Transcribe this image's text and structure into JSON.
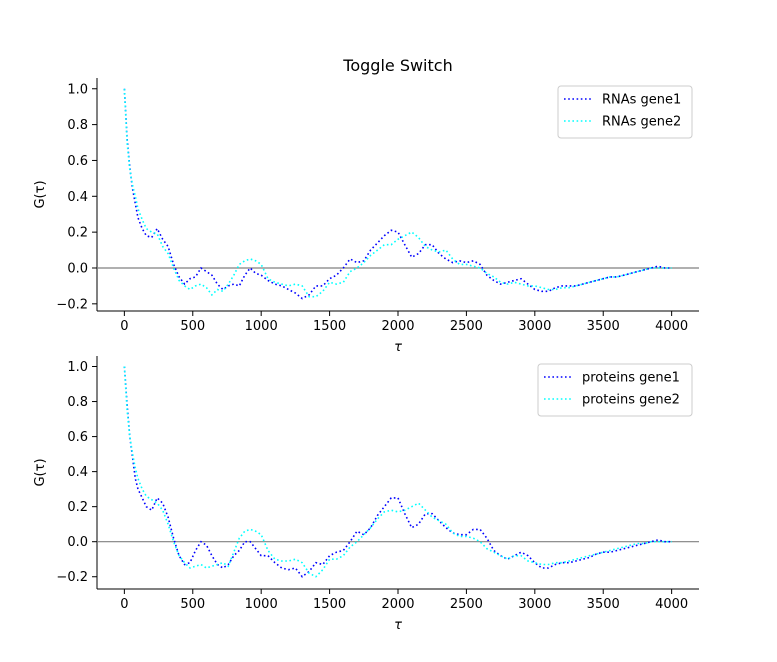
{
  "chart_data": [
    {
      "type": "line",
      "title": "Toggle Switch",
      "xlabel": "τ",
      "ylabel": "G(τ)",
      "xlim": [
        -200,
        4200
      ],
      "ylim": [
        -0.24,
        1.06
      ],
      "xticks": [
        0,
        500,
        1000,
        1500,
        2000,
        2500,
        3000,
        3500,
        4000
      ],
      "yticks": [
        -0.2,
        0.0,
        0.2,
        0.4,
        0.6,
        0.8,
        1.0
      ],
      "ytick_labels": [
        "−0.2",
        "0.0",
        "0.2",
        "0.4",
        "0.6",
        "0.8",
        "1.0"
      ],
      "hline": 0.0,
      "hline_color": "#808080",
      "legend_position": "top-right",
      "grid": false,
      "series": [
        {
          "name": "RNAs gene1",
          "color": "#0000ff",
          "style": "dotted",
          "x": [
            0,
            20,
            40,
            60,
            80,
            100,
            130,
            160,
            200,
            240,
            280,
            320,
            360,
            400,
            440,
            480,
            520,
            560,
            600,
            640,
            680,
            720,
            760,
            800,
            840,
            880,
            920,
            960,
            1000,
            1050,
            1100,
            1150,
            1200,
            1250,
            1300,
            1350,
            1400,
            1450,
            1500,
            1550,
            1600,
            1650,
            1700,
            1750,
            1800,
            1850,
            1900,
            1950,
            2000,
            2050,
            2100,
            2150,
            2200,
            2250,
            2300,
            2350,
            2400,
            2450,
            2500,
            2550,
            2600,
            2650,
            2700,
            2750,
            2800,
            2850,
            2900,
            2950,
            3000,
            3050,
            3100,
            3150,
            3200,
            3250,
            3300,
            3350,
            3400,
            3450,
            3500,
            3550,
            3600,
            3650,
            3700,
            3750,
            3800,
            3850,
            3900,
            3950,
            4000
          ],
          "y": [
            1.0,
            0.72,
            0.56,
            0.44,
            0.36,
            0.28,
            0.22,
            0.18,
            0.17,
            0.22,
            0.16,
            0.12,
            0.02,
            -0.05,
            -0.09,
            -0.06,
            -0.05,
            0.0,
            -0.02,
            -0.04,
            -0.09,
            -0.12,
            -0.1,
            -0.09,
            -0.1,
            -0.04,
            0.0,
            -0.03,
            -0.04,
            -0.07,
            -0.09,
            -0.1,
            -0.12,
            -0.14,
            -0.17,
            -0.15,
            -0.1,
            -0.1,
            -0.06,
            -0.04,
            0.0,
            0.05,
            0.03,
            0.04,
            0.1,
            0.14,
            0.18,
            0.21,
            0.2,
            0.13,
            0.06,
            0.08,
            0.13,
            0.13,
            0.08,
            0.05,
            0.03,
            0.04,
            0.03,
            0.04,
            0.02,
            -0.04,
            -0.07,
            -0.09,
            -0.08,
            -0.07,
            -0.06,
            -0.09,
            -0.12,
            -0.13,
            -0.13,
            -0.11,
            -0.1,
            -0.1,
            -0.1,
            -0.09,
            -0.08,
            -0.07,
            -0.06,
            -0.05,
            -0.05,
            -0.04,
            -0.03,
            -0.02,
            -0.01,
            0.0,
            0.01,
            0.0,
            0.0
          ]
        },
        {
          "name": "RNAs gene2",
          "color": "#00ffff",
          "style": "dotted",
          "x": [
            0,
            20,
            40,
            60,
            80,
            100,
            130,
            160,
            200,
            240,
            280,
            320,
            360,
            400,
            440,
            480,
            520,
            560,
            600,
            640,
            680,
            720,
            760,
            800,
            840,
            880,
            920,
            960,
            1000,
            1050,
            1100,
            1150,
            1200,
            1250,
            1300,
            1350,
            1400,
            1450,
            1500,
            1550,
            1600,
            1650,
            1700,
            1750,
            1800,
            1850,
            1900,
            1950,
            2000,
            2050,
            2100,
            2150,
            2200,
            2250,
            2300,
            2350,
            2400,
            2450,
            2500,
            2550,
            2600,
            2650,
            2700,
            2750,
            2800,
            2850,
            2900,
            2950,
            3000,
            3050,
            3100,
            3150,
            3200,
            3250,
            3300,
            3350,
            3400,
            3450,
            3500,
            3550,
            3600,
            3650,
            3700,
            3750,
            3800,
            3850,
            3900,
            3950,
            4000
          ],
          "y": [
            1.0,
            0.7,
            0.55,
            0.46,
            0.4,
            0.33,
            0.27,
            0.22,
            0.2,
            0.19,
            0.12,
            0.08,
            0.0,
            -0.07,
            -0.1,
            -0.12,
            -0.1,
            -0.09,
            -0.11,
            -0.15,
            -0.12,
            -0.13,
            -0.09,
            -0.04,
            0.02,
            0.04,
            0.05,
            0.04,
            0.02,
            -0.06,
            -0.08,
            -0.09,
            -0.1,
            -0.09,
            -0.1,
            -0.16,
            -0.16,
            -0.13,
            -0.08,
            -0.09,
            -0.08,
            -0.02,
            0.0,
            0.03,
            0.07,
            0.1,
            0.13,
            0.13,
            0.16,
            0.18,
            0.2,
            0.17,
            0.12,
            0.1,
            0.09,
            0.1,
            0.05,
            0.02,
            0.02,
            0.01,
            0.0,
            -0.03,
            -0.05,
            -0.08,
            -0.09,
            -0.08,
            -0.09,
            -0.1,
            -0.1,
            -0.11,
            -0.12,
            -0.12,
            -0.11,
            -0.11,
            -0.1,
            -0.09,
            -0.08,
            -0.07,
            -0.06,
            -0.05,
            -0.05,
            -0.04,
            -0.03,
            -0.02,
            -0.01,
            0.0,
            0.0,
            0.0,
            0.0
          ]
        }
      ]
    },
    {
      "type": "line",
      "title": "",
      "xlabel": "τ",
      "ylabel": "G(τ)",
      "xlim": [
        -200,
        4200
      ],
      "ylim": [
        -0.27,
        1.06
      ],
      "xticks": [
        0,
        500,
        1000,
        1500,
        2000,
        2500,
        3000,
        3500,
        4000
      ],
      "yticks": [
        -0.2,
        0.0,
        0.2,
        0.4,
        0.6,
        0.8,
        1.0
      ],
      "ytick_labels": [
        "−0.2",
        "0.0",
        "0.2",
        "0.4",
        "0.6",
        "0.8",
        "1.0"
      ],
      "hline": 0.0,
      "hline_color": "#808080",
      "legend_position": "top-right",
      "grid": false,
      "series": [
        {
          "name": "proteins gene1",
          "color": "#0000ff",
          "style": "dotted",
          "x": [
            0,
            20,
            40,
            60,
            80,
            100,
            130,
            160,
            200,
            240,
            280,
            320,
            360,
            400,
            440,
            480,
            520,
            560,
            600,
            640,
            680,
            720,
            760,
            800,
            840,
            880,
            920,
            960,
            1000,
            1050,
            1100,
            1150,
            1200,
            1250,
            1300,
            1350,
            1400,
            1450,
            1500,
            1550,
            1600,
            1650,
            1700,
            1750,
            1800,
            1850,
            1900,
            1950,
            2000,
            2050,
            2100,
            2150,
            2200,
            2250,
            2300,
            2350,
            2400,
            2450,
            2500,
            2550,
            2600,
            2650,
            2700,
            2750,
            2800,
            2850,
            2900,
            2950,
            3000,
            3050,
            3100,
            3150,
            3200,
            3250,
            3300,
            3350,
            3400,
            3450,
            3500,
            3550,
            3600,
            3650,
            3700,
            3750,
            3800,
            3850,
            3900,
            3950,
            4000
          ],
          "y": [
            1.0,
            0.78,
            0.6,
            0.48,
            0.36,
            0.3,
            0.25,
            0.2,
            0.18,
            0.25,
            0.22,
            0.14,
            0.02,
            -0.08,
            -0.13,
            -0.12,
            -0.05,
            0.0,
            -0.02,
            -0.08,
            -0.13,
            -0.15,
            -0.13,
            -0.08,
            -0.05,
            0.0,
            0.0,
            -0.04,
            -0.08,
            -0.08,
            -0.12,
            -0.15,
            -0.16,
            -0.15,
            -0.2,
            -0.17,
            -0.12,
            -0.13,
            -0.08,
            -0.06,
            -0.05,
            0.0,
            0.06,
            0.04,
            0.08,
            0.15,
            0.2,
            0.25,
            0.25,
            0.16,
            0.08,
            0.1,
            0.16,
            0.16,
            0.12,
            0.08,
            0.05,
            0.04,
            0.04,
            0.07,
            0.07,
            0.02,
            -0.05,
            -0.08,
            -0.1,
            -0.08,
            -0.06,
            -0.08,
            -0.12,
            -0.15,
            -0.15,
            -0.13,
            -0.12,
            -0.12,
            -0.11,
            -0.1,
            -0.09,
            -0.07,
            -0.06,
            -0.06,
            -0.05,
            -0.04,
            -0.03,
            -0.02,
            -0.01,
            0.0,
            0.01,
            0.0,
            0.0
          ]
        },
        {
          "name": "proteins gene2",
          "color": "#00ffff",
          "style": "dotted",
          "x": [
            0,
            20,
            40,
            60,
            80,
            100,
            130,
            160,
            200,
            240,
            280,
            320,
            360,
            400,
            440,
            480,
            520,
            560,
            600,
            640,
            680,
            720,
            760,
            800,
            840,
            880,
            920,
            960,
            1000,
            1050,
            1100,
            1150,
            1200,
            1250,
            1300,
            1350,
            1400,
            1450,
            1500,
            1550,
            1600,
            1650,
            1700,
            1750,
            1800,
            1850,
            1900,
            1950,
            2000,
            2050,
            2100,
            2150,
            2200,
            2250,
            2300,
            2350,
            2400,
            2450,
            2500,
            2550,
            2600,
            2650,
            2700,
            2750,
            2800,
            2850,
            2900,
            2950,
            3000,
            3050,
            3100,
            3150,
            3200,
            3250,
            3300,
            3350,
            3400,
            3450,
            3500,
            3550,
            3600,
            3650,
            3700,
            3750,
            3800,
            3850,
            3900,
            3950,
            4000
          ],
          "y": [
            1.0,
            0.75,
            0.6,
            0.5,
            0.42,
            0.36,
            0.3,
            0.26,
            0.24,
            0.22,
            0.18,
            0.1,
            0.0,
            -0.08,
            -0.12,
            -0.15,
            -0.14,
            -0.13,
            -0.15,
            -0.14,
            -0.13,
            -0.12,
            -0.14,
            -0.06,
            0.02,
            0.06,
            0.07,
            0.06,
            0.04,
            -0.05,
            -0.1,
            -0.11,
            -0.11,
            -0.1,
            -0.12,
            -0.18,
            -0.2,
            -0.16,
            -0.1,
            -0.1,
            -0.08,
            -0.03,
            0.0,
            0.04,
            0.08,
            0.13,
            0.17,
            0.18,
            0.17,
            0.18,
            0.2,
            0.22,
            0.18,
            0.14,
            0.12,
            0.1,
            0.05,
            0.03,
            0.03,
            0.02,
            0.0,
            -0.04,
            -0.06,
            -0.08,
            -0.1,
            -0.08,
            -0.08,
            -0.11,
            -0.12,
            -0.13,
            -0.13,
            -0.12,
            -0.12,
            -0.11,
            -0.1,
            -0.09,
            -0.08,
            -0.07,
            -0.06,
            -0.05,
            -0.04,
            -0.03,
            -0.02,
            -0.01,
            -0.01,
            0.0,
            0.0,
            0.0,
            0.0
          ]
        }
      ]
    }
  ]
}
